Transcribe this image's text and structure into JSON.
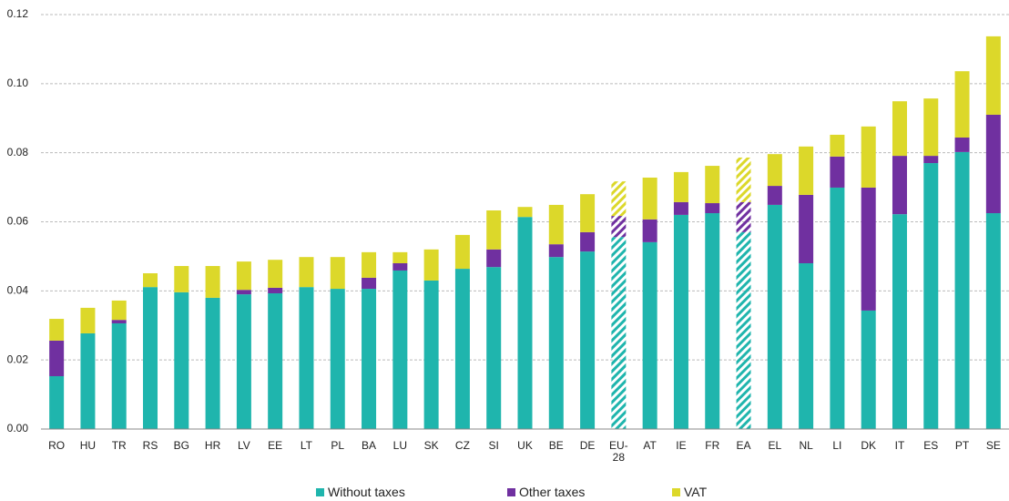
{
  "chart_data": {
    "type": "stacked_bar",
    "categories": [
      "RO",
      "HU",
      "TR",
      "RS",
      "BG",
      "HR",
      "LV",
      "EE",
      "LT",
      "PL",
      "BA",
      "LU",
      "SK",
      "CZ",
      "SI",
      "UK",
      "BE",
      "DE",
      "EU-28",
      "AT",
      "IE",
      "FR",
      "EA",
      "EL",
      "NL",
      "LI",
      "DK",
      "IT",
      "ES",
      "PT",
      "SE"
    ],
    "series": [
      {
        "name": "Without taxes",
        "color": "#1fb5ad",
        "values": [
          0.0153,
          0.0277,
          0.0306,
          0.0411,
          0.0396,
          0.038,
          0.039,
          0.0393,
          0.0411,
          0.0406,
          0.0406,
          0.0459,
          0.043,
          0.0464,
          0.0469,
          0.0614,
          0.0498,
          0.0514,
          0.0556,
          0.0541,
          0.062,
          0.0625,
          0.057,
          0.0649,
          0.048,
          0.0699,
          0.0343,
          0.0622,
          0.077,
          0.0802,
          0.0625
        ]
      },
      {
        "name": "Other taxes",
        "color": "#7030a0",
        "values": [
          0.0103,
          0,
          0.001,
          0,
          0,
          0,
          0.0013,
          0.0016,
          0,
          0,
          0.0032,
          0.0021,
          0,
          0,
          0.0051,
          0,
          0.0037,
          0.0056,
          0.0061,
          0.0066,
          0.0037,
          0.0029,
          0.0087,
          0.0055,
          0.0198,
          0.009,
          0.0356,
          0.0169,
          0.0021,
          0.0042,
          0.0285
        ]
      },
      {
        "name": "VAT",
        "color": "#dcd82a",
        "values": [
          0.0063,
          0.0074,
          0.0056,
          0.004,
          0.0076,
          0.0092,
          0.0082,
          0.0081,
          0.0087,
          0.0092,
          0.0074,
          0.0032,
          0.009,
          0.0098,
          0.0113,
          0.0029,
          0.0114,
          0.011,
          0.01,
          0.0121,
          0.0087,
          0.0108,
          0.0129,
          0.0092,
          0.014,
          0.0063,
          0.0177,
          0.0158,
          0.0166,
          0.0192,
          0.0227
        ]
      }
    ],
    "hatched_indices": [
      18,
      22
    ],
    "ylim": [
      0,
      0.12
    ],
    "yticks": [
      {
        "value": 0,
        "label": "0.00"
      },
      {
        "value": 0.02,
        "label": "0.02"
      },
      {
        "value": 0.04,
        "label": "0.04"
      },
      {
        "value": 0.06,
        "label": "0.06"
      },
      {
        "value": 0.08,
        "label": "0.08"
      },
      {
        "value": 0.1,
        "label": "0.10"
      },
      {
        "value": 0.12,
        "label": "0.12"
      }
    ],
    "grid": true,
    "legend": "bottom"
  }
}
